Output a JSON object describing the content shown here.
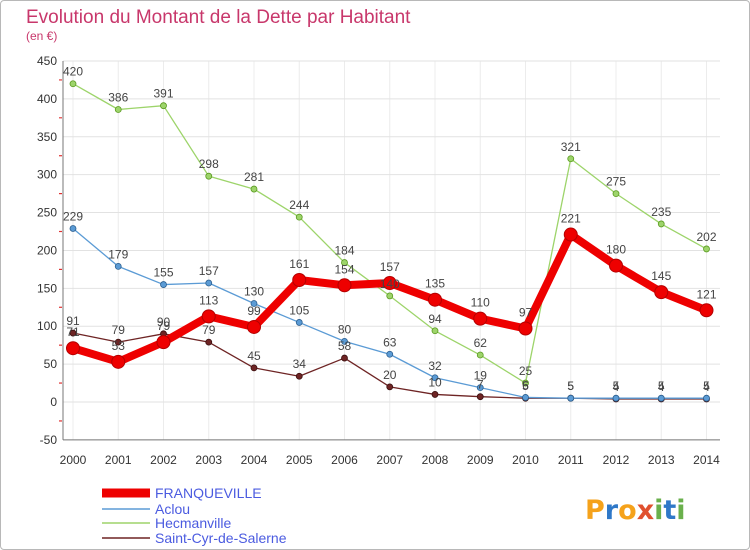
{
  "chart_data": {
    "type": "line",
    "title": "Evolution du Montant de la Dette par Habitant",
    "subtitle": "(en €)",
    "categories": [
      "2000",
      "2001",
      "2002",
      "2003",
      "2004",
      "2005",
      "2006",
      "2007",
      "2008",
      "2009",
      "2010",
      "2011",
      "2012",
      "2013",
      "2014"
    ],
    "yticks": [
      450,
      400,
      350,
      300,
      250,
      200,
      150,
      100,
      50,
      0,
      -50
    ],
    "ylim": [
      -50,
      450
    ],
    "grid": true,
    "legend": "bottom-left",
    "series": [
      {
        "name": "FRANQUEVILLE",
        "color": "#ee0000",
        "marker_stroke": "#b40000",
        "values": [
          71,
          53,
          79,
          113,
          99,
          161,
          154,
          157,
          135,
          110,
          97,
          221,
          180,
          145,
          121
        ]
      },
      {
        "name": "Aclou",
        "color": "#5b9bd5",
        "marker_stroke": "#2c5f8f",
        "values": [
          229,
          179,
          155,
          157,
          130,
          105,
          80,
          63,
          32,
          19,
          6,
          5,
          5,
          5,
          5
        ]
      },
      {
        "name": "Hecmanville",
        "color": "#9dd46a",
        "marker_stroke": "#5a9a20",
        "values": [
          420,
          386,
          391,
          298,
          281,
          244,
          184,
          140,
          94,
          62,
          25,
          321,
          275,
          235,
          202
        ]
      },
      {
        "name": "Saint-Cyr-de-Salerne",
        "color": "#6e2424",
        "marker_stroke": "#3a0f0f",
        "values": [
          91,
          79,
          90,
          79,
          45,
          34,
          58,
          20,
          10,
          7,
          5,
          5,
          4,
          4,
          4
        ]
      }
    ]
  },
  "colors": {
    "title": "#c8376b",
    "legend_text": "#4b5be0"
  },
  "logo": {
    "text": "Proxiti",
    "colors": [
      "#f5a21b",
      "#2f78c8",
      "#f5a21b",
      "#e0502e",
      "#6ab04c",
      "#2f78c8",
      "#6ab04c"
    ]
  }
}
